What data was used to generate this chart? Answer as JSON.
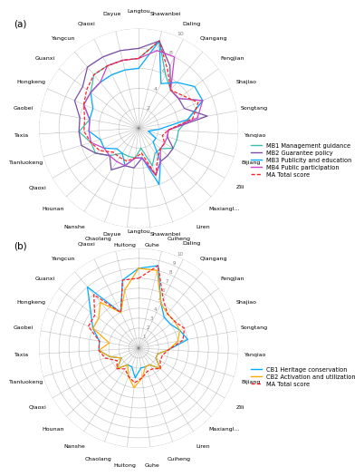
{
  "categories": [
    "Langtou",
    "Shawanbei",
    "Daling",
    "Qiangang",
    "Fengjian",
    "Shajiao",
    "Songtang",
    "Yanqiao",
    "Bijiang",
    "Zili",
    "Maxiangl...",
    "Liren",
    "Cuiheng",
    "Guhe",
    "Huitong",
    "Chaolang",
    "Nanshe",
    "Hounan",
    "Qiaoxi",
    "Tianluokeng",
    "Taxia",
    "Gaobei",
    "Hongkeng",
    "Guanxi",
    "Yangcun",
    "Qiaoxi",
    "Dayue"
  ],
  "chart_a": {
    "MB1": [
      7,
      9,
      6,
      5,
      5,
      7,
      5,
      4,
      4,
      4,
      3,
      3,
      4,
      2,
      3,
      3,
      3,
      4,
      5,
      5,
      6,
      5,
      6,
      6,
      7,
      7,
      7
    ],
    "MB2": [
      8,
      9,
      7,
      5,
      5,
      5,
      7,
      3,
      3,
      4,
      4,
      4,
      5,
      3,
      4,
      4,
      5,
      4,
      5,
      6,
      6,
      6,
      7,
      7,
      8,
      8,
      8
    ],
    "MB3": [
      6,
      9,
      5,
      6,
      7,
      7,
      5,
      2,
      1,
      2,
      2,
      4,
      6,
      3,
      3,
      4,
      3,
      3,
      4,
      4,
      5,
      5,
      5,
      6,
      6,
      6,
      6
    ],
    "MB4": [
      7,
      8,
      8,
      5,
      5,
      7,
      6,
      3,
      3,
      3,
      3,
      4,
      5,
      3,
      3,
      4,
      4,
      4,
      4,
      5,
      5,
      5,
      6,
      6,
      6,
      7,
      7
    ],
    "MA": [
      7,
      9,
      6.5,
      5,
      5.5,
      6.5,
      5.5,
      3,
      2.5,
      3,
      3,
      3.5,
      5,
      2.5,
      3,
      3.5,
      3.5,
      3.5,
      4.5,
      5,
      5.5,
      5.5,
      6,
      6.5,
      7,
      7,
      7
    ]
  },
  "chart_b": {
    "CB1": [
      8,
      8.5,
      5,
      4,
      4,
      4.5,
      5,
      3,
      2,
      2,
      3,
      2,
      2,
      2,
      3,
      2,
      2,
      3,
      2,
      3,
      4,
      4,
      5,
      6,
      8,
      4,
      7
    ],
    "CB2": [
      8,
      8,
      5,
      4.5,
      4.5,
      4.5,
      4,
      3,
      2,
      2,
      3,
      2,
      2,
      3,
      4,
      3,
      2,
      3,
      2,
      3,
      4,
      3,
      5,
      5,
      6,
      4,
      6
    ],
    "MB": [
      7,
      8.5,
      5.5,
      4.5,
      4.5,
      5,
      4.5,
      3,
      2.5,
      2.5,
      3,
      2.5,
      2.5,
      3,
      3.5,
      3,
      2.5,
      3,
      2.5,
      3.5,
      4,
      4,
      5.5,
      5.5,
      7,
      4,
      7
    ]
  },
  "colors_a": {
    "MB1": "#3dbdb1",
    "MB2": "#7b4fa6",
    "MB3": "#00aaff",
    "MB4": "#cc44cc",
    "MA": "#ff2222"
  },
  "colors_b": {
    "CB1": "#00aaff",
    "CB2": "#ffaa00",
    "MB": "#ff2222"
  },
  "legend_a": [
    {
      "label": "MB1 Management guidance",
      "color": "#3dbdb1",
      "dash": "solid"
    },
    {
      "label": "MB2 Guarantee policy",
      "color": "#7b4fa6",
      "dash": "solid"
    },
    {
      "label": "MB3 Publicity and education",
      "color": "#00aaff",
      "dash": "solid"
    },
    {
      "label": "MB4 Public participation",
      "color": "#cc44cc",
      "dash": "solid"
    },
    {
      "label": "MA Total score",
      "color": "#ff2222",
      "dash": "dashed"
    }
  ],
  "legend_b": [
    {
      "label": "CB1 Heritage conservation",
      "color": "#00aaff",
      "dash": "solid"
    },
    {
      "label": "CB2 Activation and utilization",
      "color": "#ffaa00",
      "dash": "solid"
    },
    {
      "label": "MA Total score",
      "color": "#ff2222",
      "dash": "dashed"
    }
  ],
  "chart_a_rmax": 10,
  "chart_a_rticks": [
    2,
    4,
    6,
    8,
    10
  ],
  "chart_b_rmax": 10,
  "chart_b_rticks": [
    1,
    2,
    3,
    4,
    5,
    6,
    7,
    8,
    9,
    10
  ]
}
